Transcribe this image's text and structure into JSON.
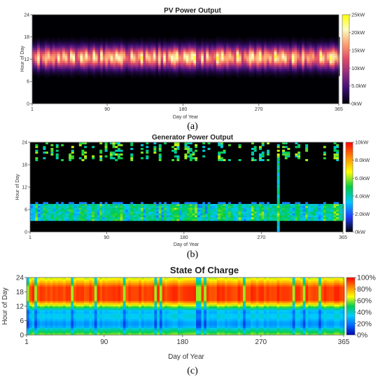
{
  "chart_data": [
    {
      "type": "heatmap",
      "title": "PV Power Output",
      "xlabel": "Day of Year",
      "ylabel": "Hour of Day",
      "xlim": [
        1,
        365
      ],
      "ylim": [
        0,
        24
      ],
      "x_ticks": [
        "1",
        "90",
        "180",
        "270",
        "365"
      ],
      "y_ticks": [
        "0",
        "6",
        "12",
        "18",
        "24"
      ],
      "colorbar_labels": [
        "0kW",
        "5.0kW",
        "10kW",
        "15kW",
        "20kW",
        "25kW"
      ],
      "colorbar_range": [
        0,
        25
      ],
      "colormap": [
        "#000004",
        "#3b0f70",
        "#8c2981",
        "#de4968",
        "#fe9f6d",
        "#fcfdbf",
        "#ffff00"
      ],
      "pattern": "Output between about hour 7 and hour 18, peaking 15-25kW around midday, zero at night, all year",
      "caption": "(a)"
    },
    {
      "type": "heatmap",
      "title": "Generator Power Output",
      "xlabel": "Day of Year",
      "ylabel": "Hour of Day",
      "xlim": [
        1,
        365
      ],
      "ylim": [
        0,
        24
      ],
      "x_ticks": [
        "1",
        "90",
        "180",
        "270",
        "365"
      ],
      "y_ticks": [
        "0",
        "6",
        "12",
        "18",
        "24"
      ],
      "colorbar_labels": [
        "0kW",
        "2.0kW",
        "4.0kW",
        "6.0kW",
        "8.0kW",
        "10kW"
      ],
      "colorbar_range": [
        0,
        10
      ],
      "colormap": [
        "#000000",
        "#1f3bff",
        "#00c8ff",
        "#00cc44",
        "#ffff00",
        "#ff8c00",
        "#ff0000"
      ],
      "pattern": "Band of about 3-5kW between hours 3 and 7, sparse output after hour 19, occasional full-day spikes",
      "caption": "(b)"
    },
    {
      "type": "heatmap",
      "title": "State Of Charge",
      "xlabel": "Day of Year",
      "ylabel": "Hour of Day",
      "xlim": [
        1,
        365
      ],
      "ylim": [
        0,
        24
      ],
      "x_ticks": [
        "1",
        "90",
        "180",
        "270",
        "365"
      ],
      "y_ticks": [
        "0",
        "6",
        "12",
        "18",
        "24"
      ],
      "colorbar_labels": [
        "0%",
        "20%",
        "40%",
        "60%",
        "80%",
        "100%"
      ],
      "colorbar_range": [
        0,
        100
      ],
      "colormap": [
        "#0000aa",
        "#0066ff",
        "#00ccff",
        "#00cc55",
        "#ffff00",
        "#ff8800",
        "#ff0000"
      ],
      "pattern": "Low charge (about 20-40%) from hour 3 to 10, high (80-100%) from hour 14 to 20, periodic dips across the year",
      "caption": "(c)"
    }
  ]
}
